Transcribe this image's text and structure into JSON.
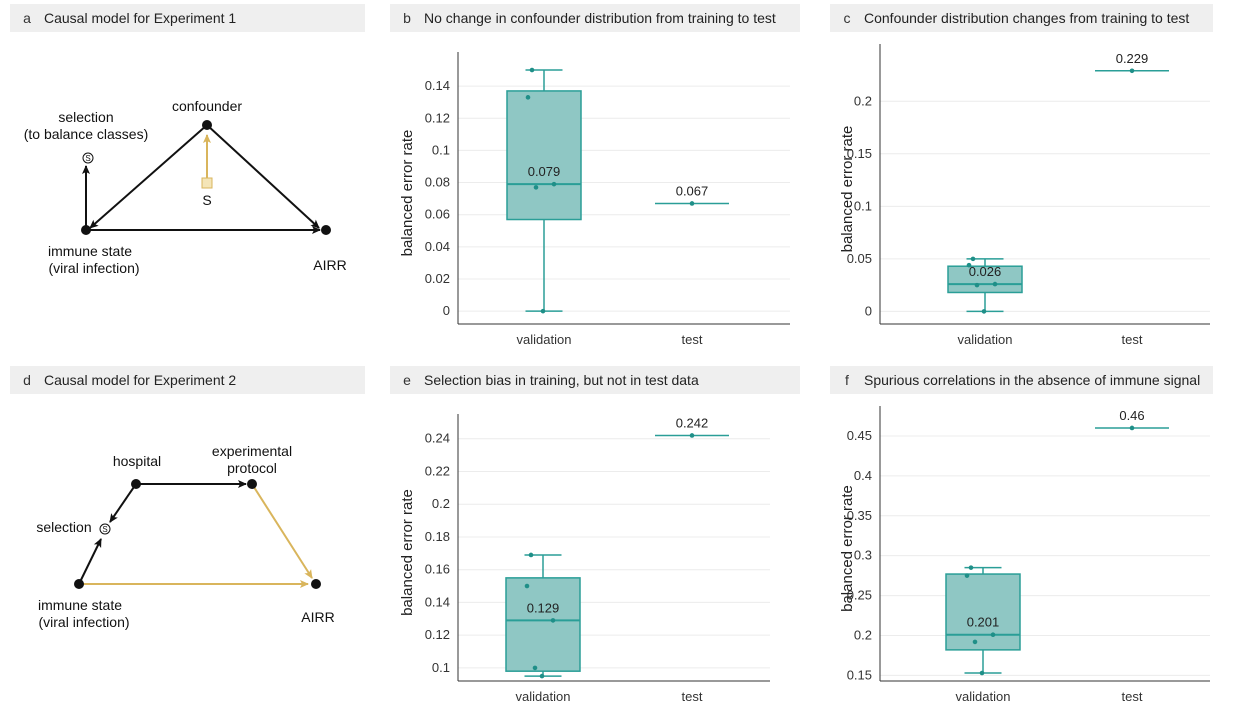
{
  "colors": {
    "box_fill": "#8fc7c4",
    "box_stroke": "#2a9e97",
    "point": "#1f8f88",
    "grid": "#ececec",
    "header_bg": "#efefef",
    "arrow_gold": "#d9b55c",
    "arrow_black": "#111111"
  },
  "panels": {
    "a": {
      "letter": "a",
      "title": "Causal model for Experiment 1",
      "nodes": {
        "confounder": "confounder",
        "selection": "selection",
        "selection2": "(to balance classes)",
        "s_symbol": "S",
        "s_circle": "S",
        "immune": "immune state",
        "immune2": "(viral infection)",
        "airr": "AIRR"
      }
    },
    "b": {
      "letter": "b",
      "title": "No change in confounder distribution from training to test"
    },
    "c": {
      "letter": "c",
      "title": "Confounder distribution changes from training to test"
    },
    "d": {
      "letter": "d",
      "title": "Causal model for Experiment 2",
      "nodes": {
        "hospital": "hospital",
        "protocol": "experimental",
        "protocol2": "protocol",
        "selection": "selection",
        "s_circle": "S",
        "immune": "immune state",
        "immune2": "(viral infection)",
        "airr": "AIRR"
      }
    },
    "e": {
      "letter": "e",
      "title": "Selection bias in training, but not in test data"
    },
    "f": {
      "letter": "f",
      "title": "Spurious correlations in the absence of immune signal"
    }
  },
  "chart_data": [
    {
      "panel": "b",
      "type": "box",
      "categories": [
        "validation",
        "test"
      ],
      "ylabel": "balanced error rate",
      "ylim": [
        -0.008,
        0.155
      ],
      "yticks": [
        0,
        0.02,
        0.04,
        0.06,
        0.08,
        0.1,
        0.12,
        0.14
      ],
      "ytick_labels": [
        "0",
        "0.02",
        "0.04",
        "0.06",
        "0.08",
        "0.1",
        "0.12",
        "0.14"
      ],
      "grid": true,
      "boxes": [
        {
          "category": "validation",
          "min": 0,
          "q1": 0.057,
          "median": 0.079,
          "q3": 0.137,
          "max": 0.15,
          "label": "0.079",
          "points": [
            0.15,
            0.133,
            0.079,
            0.077,
            0
          ]
        },
        {
          "category": "test",
          "median": 0.067,
          "label": "0.067",
          "points": [
            0.067
          ]
        }
      ]
    },
    {
      "panel": "c",
      "type": "box",
      "categories": [
        "validation",
        "test"
      ],
      "ylabel": "balanced error rate",
      "ylim": [
        -0.012,
        0.245
      ],
      "yticks": [
        0,
        0.05,
        0.1,
        0.15,
        0.2
      ],
      "ytick_labels": [
        "0",
        "0.05",
        "0.1",
        "0.15",
        "0.2"
      ],
      "grid": true,
      "boxes": [
        {
          "category": "validation",
          "min": 0,
          "q1": 0.018,
          "median": 0.026,
          "q3": 0.043,
          "max": 0.05,
          "label": "0.026",
          "points": [
            0.05,
            0.044,
            0.026,
            0.025,
            0
          ]
        },
        {
          "category": "test",
          "median": 0.229,
          "label": "0.229",
          "points": [
            0.229
          ]
        }
      ]
    },
    {
      "panel": "e",
      "type": "box",
      "categories": [
        "validation",
        "test"
      ],
      "ylabel": "balanced error rate",
      "ylim": [
        0.092,
        0.249
      ],
      "yticks": [
        0.1,
        0.12,
        0.14,
        0.16,
        0.18,
        0.2,
        0.22,
        0.24
      ],
      "ytick_labels": [
        "0.1",
        "0.12",
        "0.14",
        "0.16",
        "0.18",
        "0.2",
        "0.22",
        "0.24"
      ],
      "grid": true,
      "boxes": [
        {
          "category": "validation",
          "min": 0.095,
          "q1": 0.098,
          "median": 0.129,
          "q3": 0.155,
          "max": 0.169,
          "label": "0.129",
          "points": [
            0.169,
            0.15,
            0.129,
            0.1,
            0.095
          ]
        },
        {
          "category": "test",
          "median": 0.242,
          "label": "0.242",
          "points": [
            0.242
          ]
        }
      ]
    },
    {
      "panel": "f",
      "type": "box",
      "categories": [
        "validation",
        "test"
      ],
      "ylabel": "balanced error rate",
      "ylim": [
        0.143,
        0.475
      ],
      "yticks": [
        0.15,
        0.2,
        0.25,
        0.3,
        0.35,
        0.4,
        0.45
      ],
      "ytick_labels": [
        "0.15",
        "0.2",
        "0.25",
        "0.3",
        "0.35",
        "0.4",
        "0.45"
      ],
      "grid": true,
      "boxes": [
        {
          "category": "validation",
          "min": 0.153,
          "q1": 0.182,
          "median": 0.201,
          "q3": 0.277,
          "max": 0.285,
          "label": "0.201",
          "points": [
            0.285,
            0.275,
            0.201,
            0.192,
            0.153
          ]
        },
        {
          "category": "test",
          "median": 0.46,
          "label": "0.46",
          "points": [
            0.46
          ]
        }
      ]
    }
  ]
}
